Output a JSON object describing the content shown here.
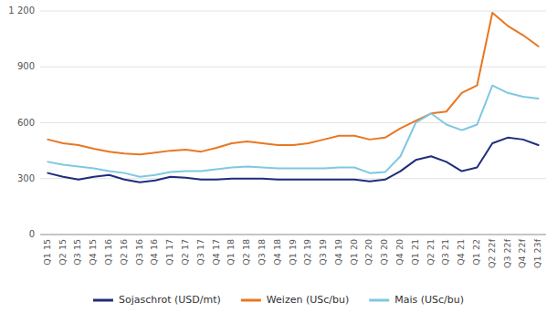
{
  "chart_data": {
    "type": "line",
    "categories": [
      "Q1 15",
      "Q2 15",
      "Q3 15",
      "Q4 15",
      "Q1 16",
      "Q2 16",
      "Q3 16",
      "Q4 16",
      "Q1 17",
      "Q2 17",
      "Q3 17",
      "Q4 17",
      "Q1 18",
      "Q2 18",
      "Q3 18",
      "Q4 18",
      "Q1 19",
      "Q2 19",
      "Q3 19",
      "Q4 19",
      "Q1 20",
      "Q2 20",
      "Q3 20",
      "Q4 20",
      "Q1 21",
      "Q2 21",
      "Q3 21",
      "Q4 21",
      "Q1 22",
      "Q2 22f",
      "Q3 22f",
      "Q4 22f",
      "Q1 23f"
    ],
    "series": [
      {
        "name": "Sojaschrot (USD/mt)",
        "color": "#1f2d7b",
        "values": [
          330,
          310,
          295,
          310,
          320,
          295,
          280,
          290,
          310,
          305,
          295,
          295,
          300,
          300,
          300,
          295,
          295,
          295,
          295,
          295,
          295,
          285,
          295,
          340,
          400,
          420,
          390,
          340,
          360,
          490,
          520,
          510,
          480
        ]
      },
      {
        "name": "Weizen (USc/bu)",
        "color": "#e87722",
        "values": [
          510,
          490,
          480,
          460,
          445,
          435,
          430,
          440,
          450,
          455,
          445,
          465,
          490,
          500,
          490,
          480,
          480,
          490,
          510,
          530,
          530,
          510,
          520,
          570,
          610,
          650,
          660,
          760,
          800,
          1190,
          1120,
          1070,
          1010
        ]
      },
      {
        "name": "Mais (USc/bu)",
        "color": "#7ec8e3",
        "values": [
          390,
          375,
          365,
          355,
          340,
          330,
          310,
          320,
          335,
          340,
          340,
          350,
          360,
          365,
          360,
          355,
          355,
          355,
          355,
          360,
          360,
          330,
          335,
          420,
          600,
          650,
          590,
          560,
          590,
          800,
          760,
          740,
          730
        ]
      }
    ],
    "ylim": [
      0,
      1200
    ],
    "yticks": [
      0,
      300,
      600,
      900,
      {
        "value": 1200,
        "label": "1 200"
      }
    ],
    "grid": true,
    "legend": "bottom"
  }
}
